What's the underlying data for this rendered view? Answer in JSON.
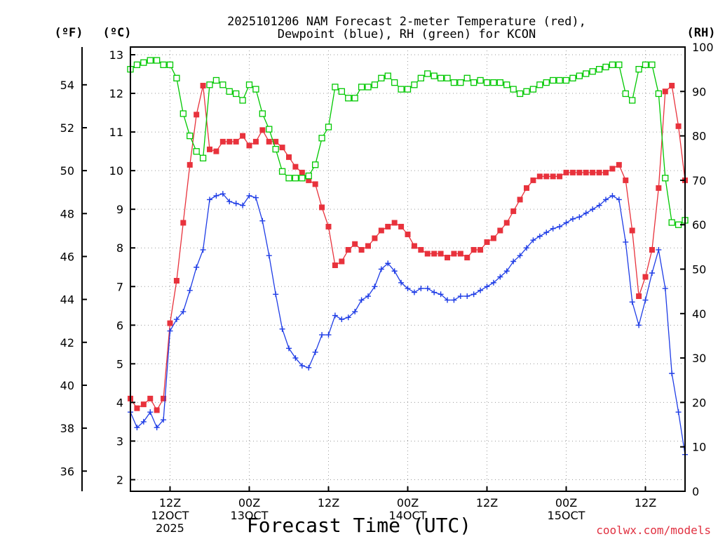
{
  "title": {
    "line1": "2025101206 NAM Forecast 2-meter Temperature (red),",
    "line2": "Dewpoint (blue), RH (green) for KCON"
  },
  "units": {
    "f": "(ºF)",
    "c": "(ºC)",
    "rh": "(RH)"
  },
  "xlabel": "Forecast Time (UTC)",
  "credit": "coolwx.com/models",
  "colors": {
    "temperature": "#e8323c",
    "dewpoint": "#1e3ce6",
    "rh": "#00c800"
  },
  "chart_data": {
    "type": "line",
    "x_unit": "forecast hour (from 2025101206)",
    "x_range": [
      0,
      84
    ],
    "x_ticks": [
      {
        "hour": 6,
        "lines": [
          "12Z",
          "12OCT",
          "2025"
        ]
      },
      {
        "hour": 18,
        "lines": [
          "00Z",
          "13OCT"
        ]
      },
      {
        "hour": 30,
        "lines": [
          "12Z"
        ]
      },
      {
        "hour": 42,
        "lines": [
          "00Z",
          "14OCT"
        ]
      },
      {
        "hour": 54,
        "lines": [
          "12Z"
        ]
      },
      {
        "hour": 66,
        "lines": [
          "00Z",
          "15OCT"
        ]
      },
      {
        "hour": 78,
        "lines": [
          "12Z"
        ]
      }
    ],
    "yaxis_celsius": {
      "range": [
        1.7,
        13.2
      ],
      "ticks": [
        2,
        3,
        4,
        5,
        6,
        7,
        8,
        9,
        10,
        11,
        12,
        13
      ]
    },
    "yaxis_fahrenheit": {
      "ticks": [
        36,
        38,
        40,
        42,
        44,
        46,
        48,
        50,
        52,
        54
      ]
    },
    "yaxis_rh": {
      "range": [
        0,
        100
      ],
      "ticks": [
        0,
        10,
        20,
        30,
        40,
        50,
        60,
        70,
        80,
        90,
        100
      ]
    },
    "grid": true,
    "series": [
      {
        "name": "Temperature",
        "axis": "celsius",
        "marker": "filled-square",
        "x": [
          0,
          1,
          2,
          3,
          4,
          5,
          6,
          7,
          8,
          9,
          10,
          11,
          12,
          13,
          14,
          15,
          16,
          17,
          18,
          19,
          20,
          21,
          22,
          23,
          24,
          25,
          26,
          27,
          28,
          29,
          30,
          31,
          32,
          33,
          34,
          35,
          36,
          37,
          38,
          39,
          40,
          41,
          42,
          43,
          44,
          45,
          46,
          47,
          48,
          49,
          50,
          51,
          52,
          53,
          54,
          55,
          56,
          57,
          58,
          59,
          60,
          61,
          62,
          63,
          64,
          65,
          66,
          67,
          68,
          69,
          70,
          71,
          72,
          73,
          74,
          75,
          76,
          77,
          78,
          79,
          80,
          81,
          82,
          83,
          84
        ],
        "values": [
          4.1,
          3.85,
          3.95,
          4.1,
          3.8,
          4.1,
          6.05,
          7.15,
          8.65,
          10.15,
          11.45,
          12.2,
          10.55,
          10.5,
          10.75,
          10.75,
          10.75,
          10.9,
          10.65,
          10.75,
          11.05,
          10.75,
          10.75,
          10.6,
          10.35,
          10.1,
          9.95,
          9.75,
          9.65,
          9.05,
          8.55,
          7.55,
          7.65,
          7.95,
          8.1,
          7.95,
          8.05,
          8.25,
          8.45,
          8.55,
          8.65,
          8.55,
          8.35,
          8.05,
          7.95,
          7.85,
          7.85,
          7.85,
          7.75,
          7.85,
          7.85,
          7.75,
          7.95,
          7.95,
          8.15,
          8.25,
          8.45,
          8.65,
          8.95,
          9.25,
          9.55,
          9.75,
          9.85,
          9.85,
          9.85,
          9.85,
          9.95,
          9.95,
          9.95,
          9.95,
          9.95,
          9.95,
          9.95,
          10.05,
          10.15,
          9.75,
          8.45,
          6.75,
          7.25,
          7.95,
          9.55,
          12.05,
          12.2,
          11.15,
          9.75
        ]
      },
      {
        "name": "Dewpoint",
        "axis": "celsius",
        "marker": "plus",
        "x": [
          0,
          1,
          2,
          3,
          4,
          5,
          6,
          7,
          8,
          9,
          10,
          11,
          12,
          13,
          14,
          15,
          16,
          17,
          18,
          19,
          20,
          21,
          22,
          23,
          24,
          25,
          26,
          27,
          28,
          29,
          30,
          31,
          32,
          33,
          34,
          35,
          36,
          37,
          38,
          39,
          40,
          41,
          42,
          43,
          44,
          45,
          46,
          47,
          48,
          49,
          50,
          51,
          52,
          53,
          54,
          55,
          56,
          57,
          58,
          59,
          60,
          61,
          62,
          63,
          64,
          65,
          66,
          67,
          68,
          69,
          70,
          71,
          72,
          73,
          74,
          75,
          76,
          77,
          78,
          79,
          80,
          81,
          82,
          83,
          84
        ],
        "values": [
          3.75,
          3.35,
          3.5,
          3.75,
          3.35,
          3.55,
          5.85,
          6.15,
          6.35,
          6.9,
          7.5,
          7.95,
          9.25,
          9.35,
          9.4,
          9.2,
          9.15,
          9.1,
          9.35,
          9.3,
          8.7,
          7.8,
          6.8,
          5.9,
          5.4,
          5.15,
          4.95,
          4.9,
          5.3,
          5.75,
          5.75,
          6.25,
          6.15,
          6.2,
          6.35,
          6.65,
          6.75,
          7.0,
          7.45,
          7.6,
          7.4,
          7.1,
          6.95,
          6.85,
          6.95,
          6.95,
          6.85,
          6.8,
          6.65,
          6.65,
          6.75,
          6.75,
          6.8,
          6.9,
          7.0,
          7.1,
          7.25,
          7.4,
          7.65,
          7.8,
          8.0,
          8.2,
          8.3,
          8.4,
          8.5,
          8.55,
          8.65,
          8.75,
          8.8,
          8.9,
          9.0,
          9.1,
          9.25,
          9.35,
          9.25,
          8.15,
          6.6,
          6.0,
          6.65,
          7.35,
          7.95,
          6.95,
          4.75,
          3.75,
          2.65
        ]
      },
      {
        "name": "RH",
        "axis": "rh",
        "marker": "open-square",
        "x": [
          0,
          1,
          2,
          3,
          4,
          5,
          6,
          7,
          8,
          9,
          10,
          11,
          12,
          13,
          14,
          15,
          16,
          17,
          18,
          19,
          20,
          21,
          22,
          23,
          24,
          25,
          26,
          27,
          28,
          29,
          30,
          31,
          32,
          33,
          34,
          35,
          36,
          37,
          38,
          39,
          40,
          41,
          42,
          43,
          44,
          45,
          46,
          47,
          48,
          49,
          50,
          51,
          52,
          53,
          54,
          55,
          56,
          57,
          58,
          59,
          60,
          61,
          62,
          63,
          64,
          65,
          66,
          67,
          68,
          69,
          70,
          71,
          72,
          73,
          74,
          75,
          76,
          77,
          78,
          79,
          80,
          81,
          82,
          83,
          84
        ],
        "values": [
          95,
          96,
          96.5,
          97,
          97,
          96,
          96,
          93,
          85,
          80,
          76.5,
          75,
          91.5,
          92.5,
          91.5,
          90,
          89.5,
          88,
          91.5,
          90.5,
          85,
          81.5,
          77,
          72,
          70.5,
          70.5,
          70.5,
          71,
          73.5,
          79.5,
          82,
          91,
          90,
          88.5,
          88.5,
          91,
          91,
          91.5,
          93,
          93.5,
          92,
          90.5,
          90.5,
          91.5,
          93,
          94,
          93.5,
          93,
          93,
          92,
          92,
          93,
          92,
          92.5,
          92,
          92,
          92,
          91.5,
          90.5,
          89.5,
          90,
          90.5,
          91.5,
          92,
          92.5,
          92.5,
          92.5,
          93,
          93.5,
          94,
          94.5,
          95,
          95.5,
          96,
          96,
          89.5,
          88,
          95,
          96,
          96,
          89.5,
          70.5,
          60.5,
          60,
          61
        ]
      }
    ]
  }
}
